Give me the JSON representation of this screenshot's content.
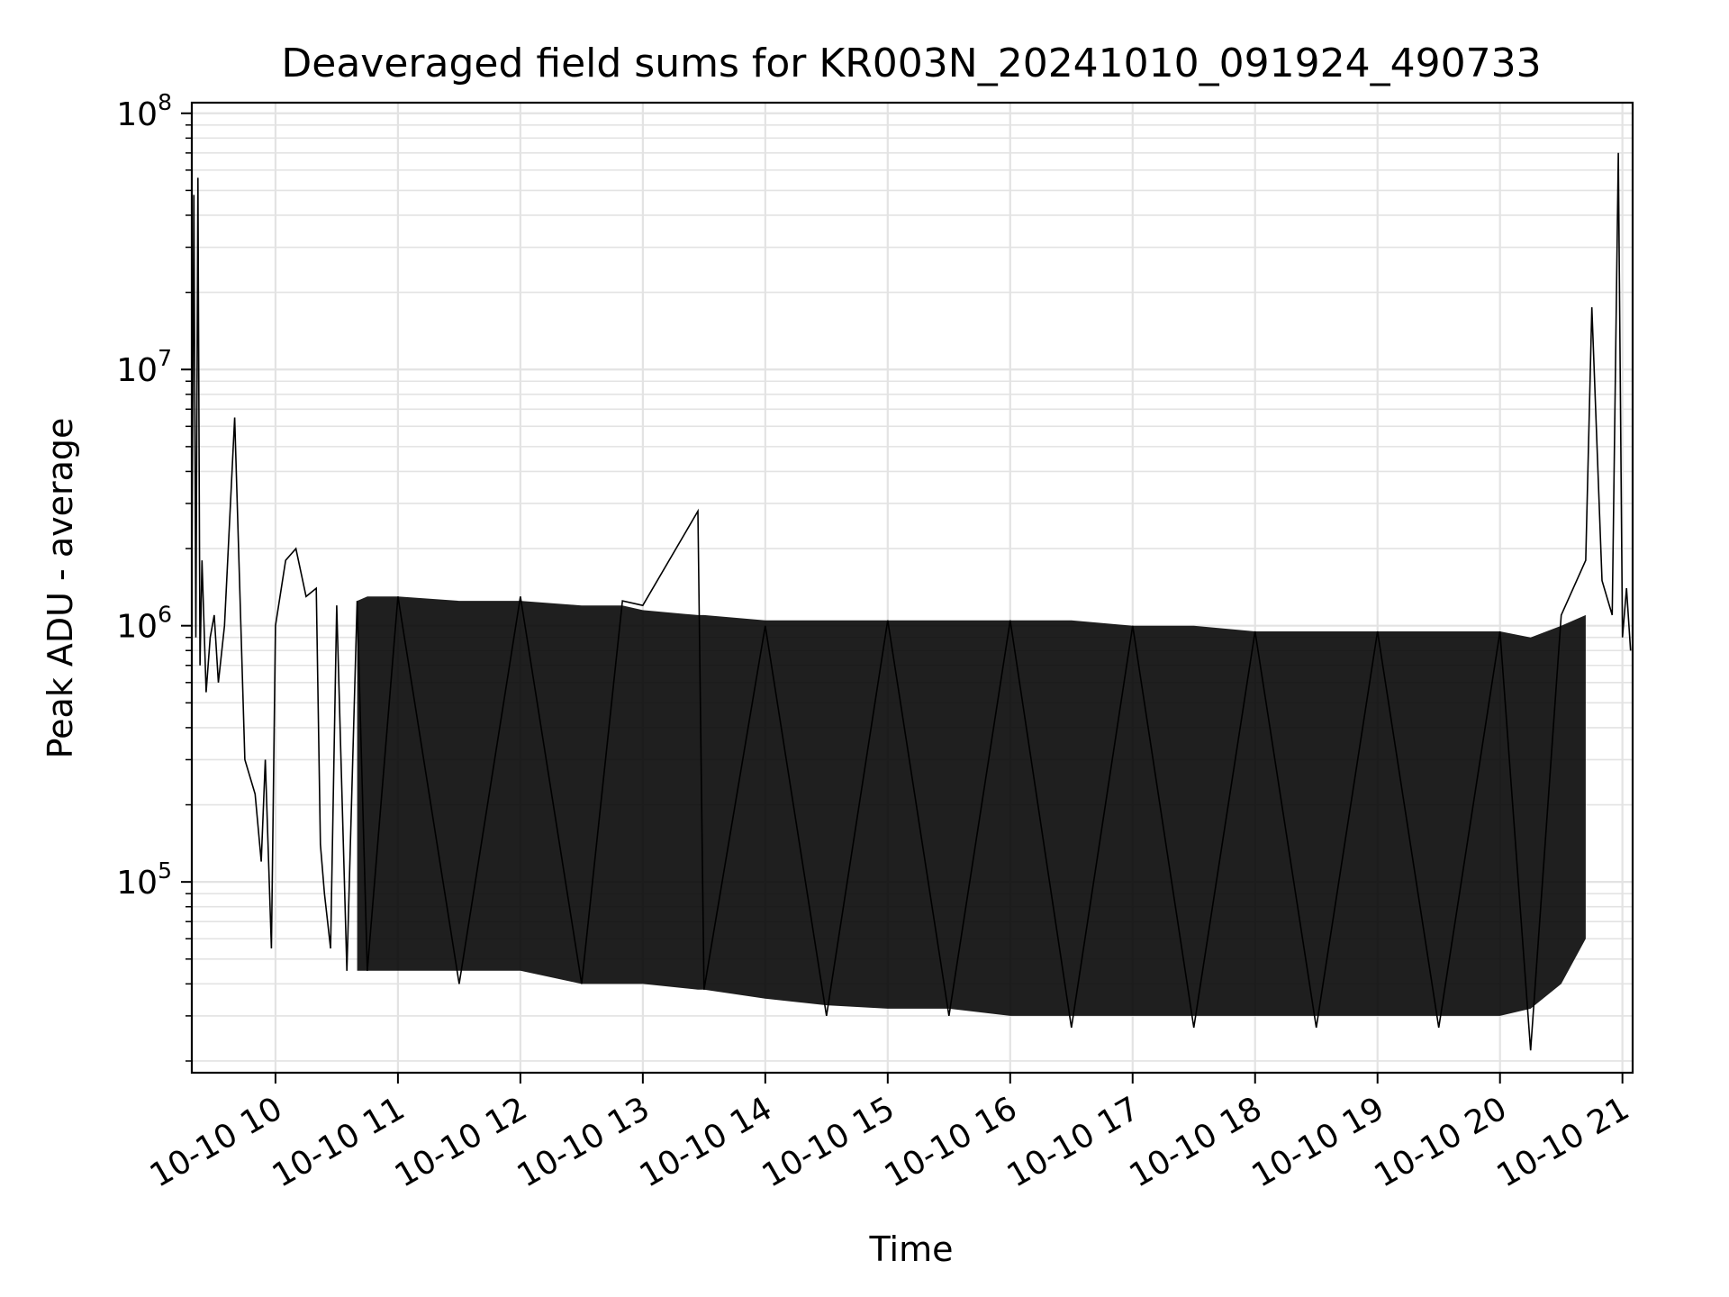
{
  "chart_data": {
    "type": "line",
    "title": "Deaveraged field sums for KR003N_20241010_091924_490733",
    "xlabel": "Time",
    "ylabel": "Peak ADU - average",
    "y_scale": "log",
    "ylim": [
      18000,
      110000000
    ],
    "xlim": [
      "2024-10-10 09:19",
      "2024-10-10 21:05"
    ],
    "grid": true,
    "legend": "none",
    "line_color": "#000000",
    "grid_color": "#e3e3e3",
    "x_ticks": [
      {
        "t": "2024-10-10 10:00",
        "label": "10-10 10"
      },
      {
        "t": "2024-10-10 11:00",
        "label": "10-10 11"
      },
      {
        "t": "2024-10-10 12:00",
        "label": "10-10 12"
      },
      {
        "t": "2024-10-10 13:00",
        "label": "10-10 13"
      },
      {
        "t": "2024-10-10 14:00",
        "label": "10-10 14"
      },
      {
        "t": "2024-10-10 15:00",
        "label": "10-10 15"
      },
      {
        "t": "2024-10-10 16:00",
        "label": "10-10 16"
      },
      {
        "t": "2024-10-10 17:00",
        "label": "10-10 17"
      },
      {
        "t": "2024-10-10 18:00",
        "label": "10-10 18"
      },
      {
        "t": "2024-10-10 19:00",
        "label": "10-10 19"
      },
      {
        "t": "2024-10-10 20:00",
        "label": "10-10 20"
      },
      {
        "t": "2024-10-10 21:00",
        "label": "10-10 21"
      }
    ],
    "y_ticks": [
      {
        "value": 100000,
        "base": "10",
        "exp": "5"
      },
      {
        "value": 1000000,
        "base": "10",
        "exp": "6"
      },
      {
        "value": 10000000,
        "base": "10",
        "exp": "7"
      },
      {
        "value": 100000000,
        "base": "10",
        "exp": "8"
      }
    ],
    "series": [
      {
        "x": [
          "2024-10-10 09:19",
          "2024-10-10 09:20",
          "2024-10-10 09:21",
          "2024-10-10 09:22",
          "2024-10-10 09:23",
          "2024-10-10 09:24",
          "2024-10-10 09:26",
          "2024-10-10 09:28",
          "2024-10-10 09:30",
          "2024-10-10 09:32",
          "2024-10-10 09:35",
          "2024-10-10 09:40",
          "2024-10-10 09:45",
          "2024-10-10 09:50",
          "2024-10-10 09:53",
          "2024-10-10 09:55",
          "2024-10-10 09:58",
          "2024-10-10 10:00",
          "2024-10-10 10:05",
          "2024-10-10 10:10",
          "2024-10-10 10:15",
          "2024-10-10 10:20",
          "2024-10-10 10:22",
          "2024-10-10 10:24",
          "2024-10-10 10:27",
          "2024-10-10 10:30",
          "2024-10-10 10:35",
          "2024-10-10 10:40",
          "2024-10-10 10:45",
          "2024-10-10 11:00",
          "2024-10-10 11:30",
          "2024-10-10 12:00",
          "2024-10-10 12:30",
          "2024-10-10 12:50",
          "2024-10-10 13:00",
          "2024-10-10 13:27",
          "2024-10-10 13:30",
          "2024-10-10 14:00",
          "2024-10-10 14:30",
          "2024-10-10 15:00",
          "2024-10-10 15:30",
          "2024-10-10 16:00",
          "2024-10-10 16:30",
          "2024-10-10 17:00",
          "2024-10-10 17:30",
          "2024-10-10 18:00",
          "2024-10-10 18:30",
          "2024-10-10 19:00",
          "2024-10-10 19:30",
          "2024-10-10 20:00",
          "2024-10-10 20:15",
          "2024-10-10 20:30",
          "2024-10-10 20:42",
          "2024-10-10 20:45",
          "2024-10-10 20:50",
          "2024-10-10 20:55",
          "2024-10-10 20:58",
          "2024-10-10 21:00",
          "2024-10-10 21:02",
          "2024-10-10 21:04"
        ],
        "y": [
          1400000,
          48000000,
          900000,
          56000000,
          700000,
          1800000,
          550000,
          900000,
          1100000,
          600000,
          1000000,
          6500000,
          300000,
          220000,
          120000,
          300000,
          55000,
          1000000,
          1800000,
          2000000,
          1300000,
          1400000,
          140000,
          90000,
          55000,
          1200000,
          45000,
          1250000,
          45000,
          1300000,
          40000,
          1300000,
          40000,
          1250000,
          1200000,
          2800000,
          38000,
          1000000,
          30000,
          1050000,
          30000,
          1050000,
          27000,
          1000000,
          27000,
          950000,
          27000,
          950000,
          27000,
          950000,
          22000,
          1100000,
          1800000,
          17500000,
          1500000,
          1100000,
          70000000,
          900000,
          1400000,
          800000
        ],
        "band_high": [
          null,
          null,
          null,
          null,
          null,
          null,
          null,
          null,
          null,
          null,
          null,
          null,
          null,
          null,
          null,
          null,
          null,
          null,
          null,
          null,
          null,
          null,
          null,
          null,
          null,
          null,
          null,
          1250000,
          1300000,
          1300000,
          1250000,
          1250000,
          1200000,
          1200000,
          1150000,
          1100000,
          1100000,
          1050000,
          1050000,
          1050000,
          1050000,
          1050000,
          1050000,
          1000000,
          1000000,
          950000,
          950000,
          950000,
          950000,
          950000,
          900000,
          1000000,
          1100000,
          null,
          null,
          null,
          null,
          null,
          null,
          null
        ],
        "band_low": [
          null,
          null,
          null,
          null,
          null,
          null,
          null,
          null,
          null,
          null,
          null,
          null,
          null,
          null,
          null,
          null,
          null,
          null,
          null,
          null,
          null,
          null,
          null,
          null,
          null,
          null,
          null,
          45000,
          45000,
          45000,
          45000,
          45000,
          40000,
          40000,
          40000,
          38000,
          38000,
          35000,
          33000,
          32000,
          32000,
          30000,
          30000,
          30000,
          30000,
          30000,
          30000,
          30000,
          30000,
          30000,
          32000,
          40000,
          60000,
          null,
          null,
          null,
          null,
          null,
          null,
          null
        ]
      }
    ]
  }
}
